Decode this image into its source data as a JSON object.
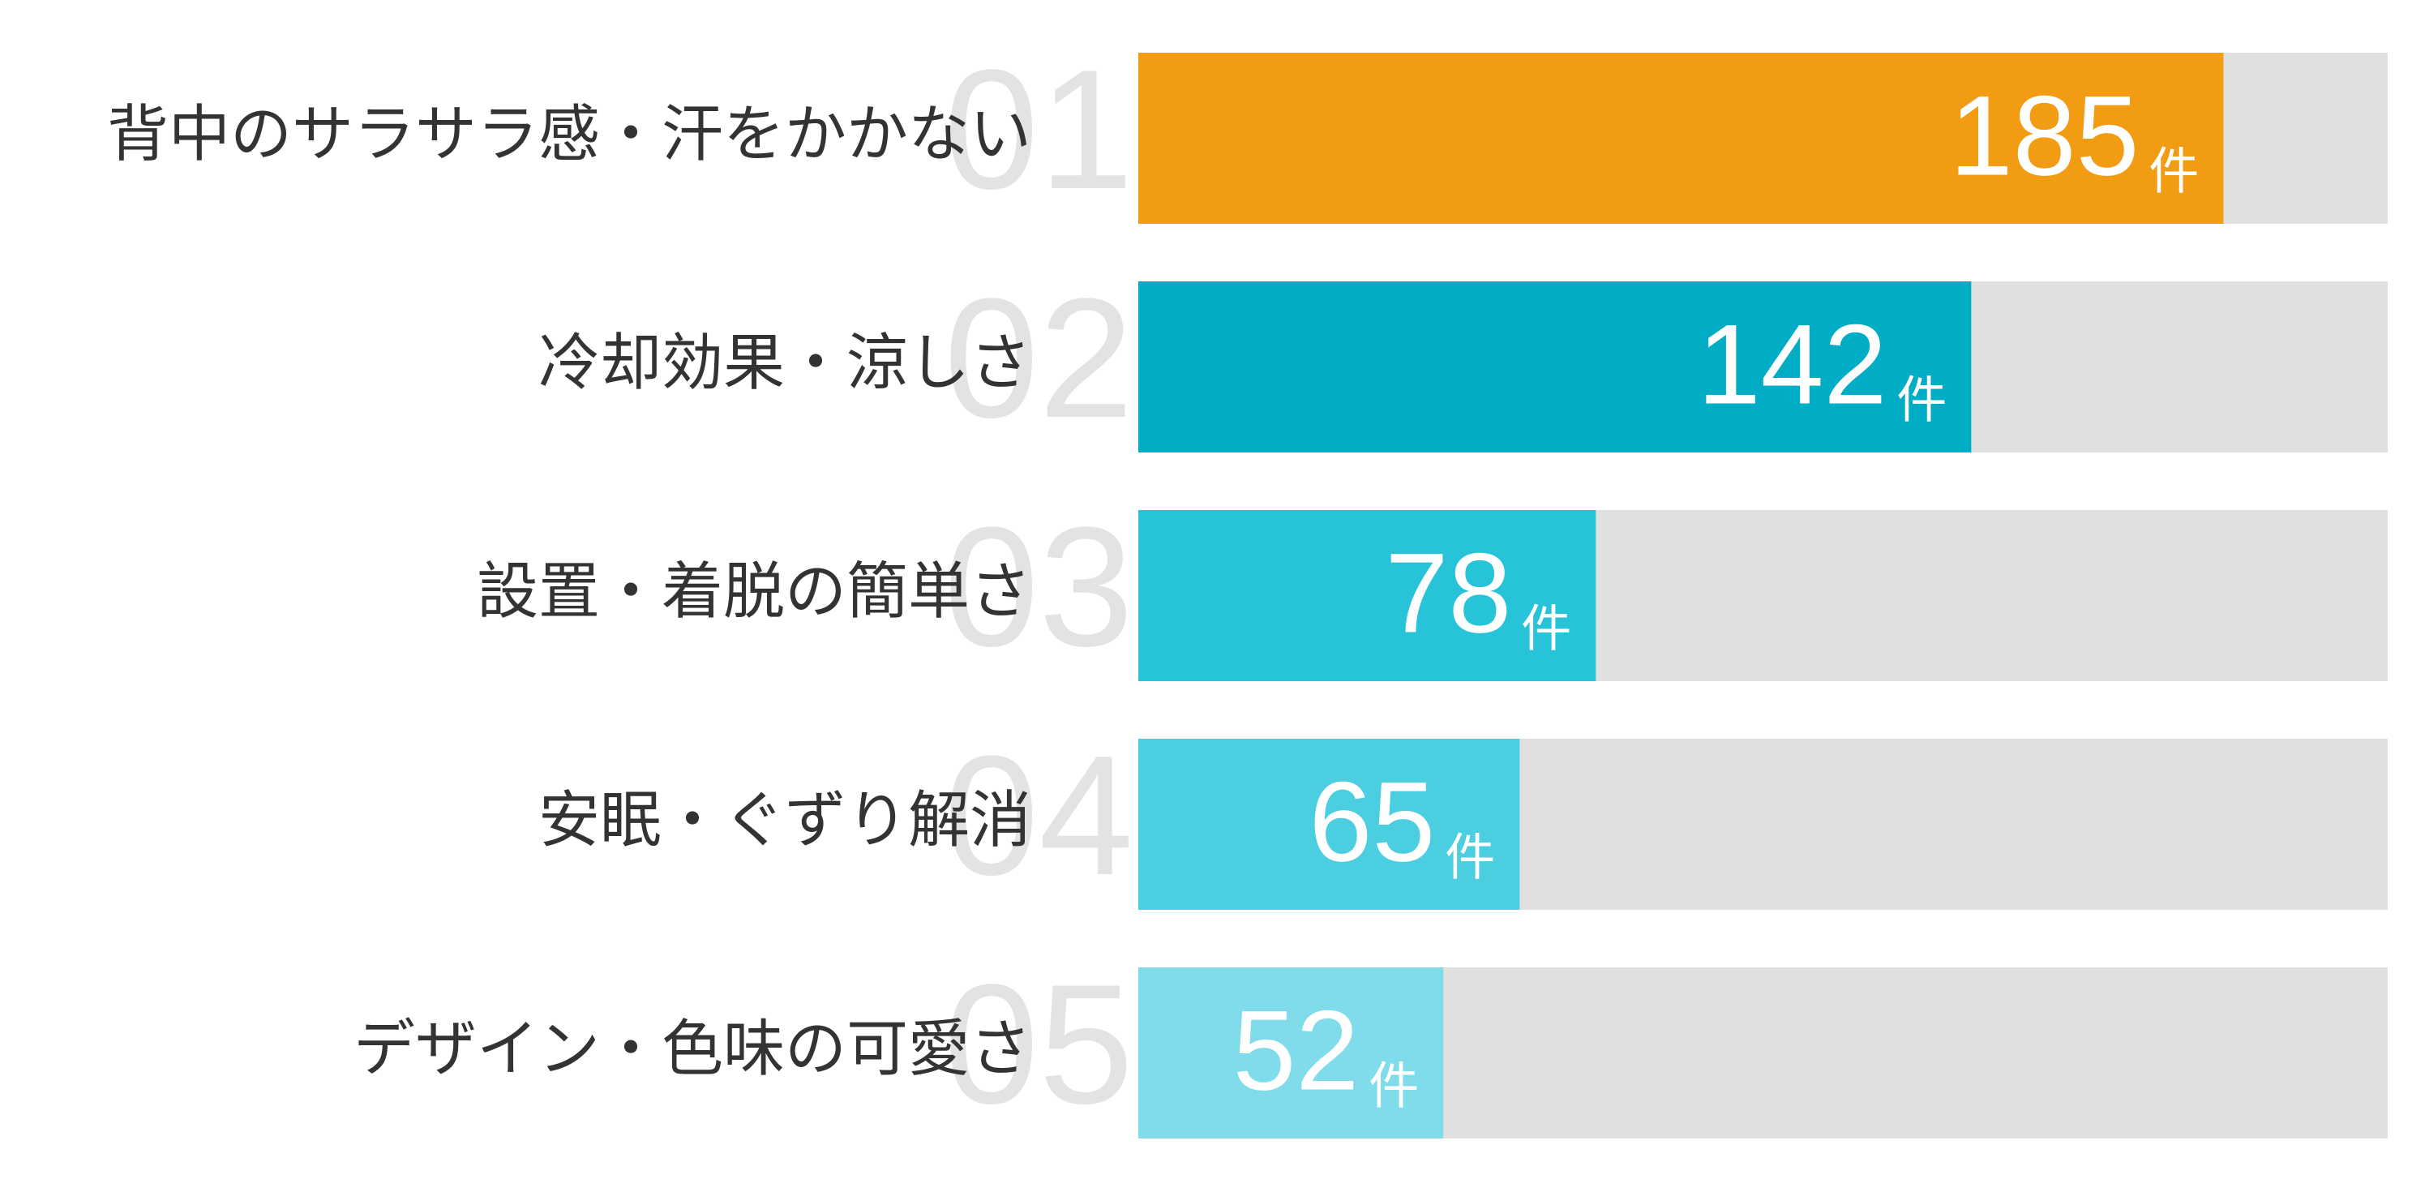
{
  "chart_data": {
    "type": "bar",
    "categories": [
      "背中のサラサラ感・汗をかかない",
      "冷却効果・涼しさ",
      "設置・着脱の簡単さ",
      "安眠・ぐずり解消",
      "デザイン・色味の可愛さ"
    ],
    "ranks": [
      "01",
      "02",
      "03",
      "04",
      "05"
    ],
    "values": [
      185,
      142,
      78,
      65,
      52
    ],
    "unit": "件",
    "colors": [
      "#f29c14",
      "#00adc4",
      "#27c4d9",
      "#4bcfe0",
      "#80dcea"
    ],
    "track_color": "#e0e0e0",
    "xlim": [
      0,
      213
    ]
  }
}
